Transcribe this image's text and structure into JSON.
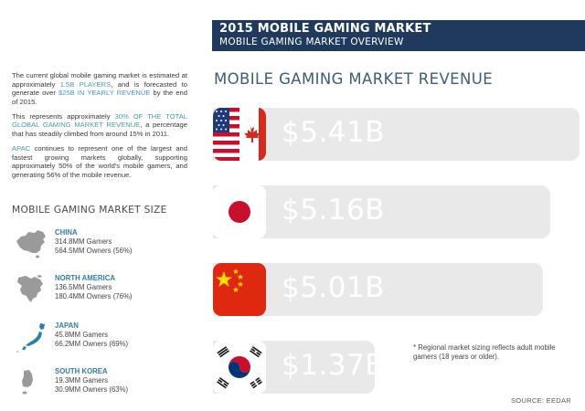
{
  "header": {
    "title": "2015 MOBILE GAMING MARKET",
    "subtitle": "MOBILE GAMING MARKET OVERVIEW"
  },
  "intro": {
    "p1_a": "The current global mobile gaming market is estimated at approximately ",
    "p1_hl1": "1.5B PLAYERS",
    "p1_b": ", and is forecasted to generate over ",
    "p1_hl2": "$25B IN YEARLY REVENUE",
    "p1_c": " by the end of 2015.",
    "p2_a": "This represents approximately ",
    "p2_hl": "30% OF THE TOTAL GLOBAL GAMING MARKET REVENUE",
    "p2_b": ", a percentage that has steadily climbed from around 15% in 2011.",
    "p3_hl": "APAC",
    "p3_b": " continues to represent one of the largest and fastest growing markets globally, supporting approximately 50% of the world's mobile gamers, and generating 56% of the mobile revenue."
  },
  "market_size": {
    "title": "MOBILE GAMING MARKET SIZE",
    "regions": [
      {
        "name": "CHINA",
        "gamers": "314.8MM Gamers",
        "owners": "564.5MM Owners (56%)",
        "icon": "china-map-icon"
      },
      {
        "name": "NORTH AMERICA",
        "gamers": "136.5MM Gamers",
        "owners": "180.4MM Owners (76%)",
        "icon": "north-america-map-icon"
      },
      {
        "name": "JAPAN",
        "gamers": "45.8MM Gamers",
        "owners": "66.2MM Owners (69%)",
        "icon": "japan-map-icon"
      },
      {
        "name": "SOUTH KOREA",
        "gamers": "19.3MM Gamers",
        "owners": "30.9MM Owners (63%)",
        "icon": "south-korea-map-icon"
      }
    ]
  },
  "revenue": {
    "title": "MOBILE GAMING MARKET REVENUE",
    "bars": [
      {
        "flag": "us-canada-flag-icon",
        "value": "$5.41B"
      },
      {
        "flag": "japan-flag-icon",
        "value": "$5.16B"
      },
      {
        "flag": "china-flag-icon",
        "value": "$5.01B"
      },
      {
        "flag": "south-korea-flag-icon",
        "value": "$1.37B"
      }
    ]
  },
  "note": "* Regional market sizing reflects adult mobile gamers (18 years or older).",
  "source": "SOURCE: EEDAR",
  "colors": {
    "header_bg": "#1f3a5c",
    "highlight": "#4a9ab0",
    "region_name": "#2d7fa3",
    "bar_bg": "#e9e9ea",
    "revenue_title": "#3f5d7a"
  }
}
